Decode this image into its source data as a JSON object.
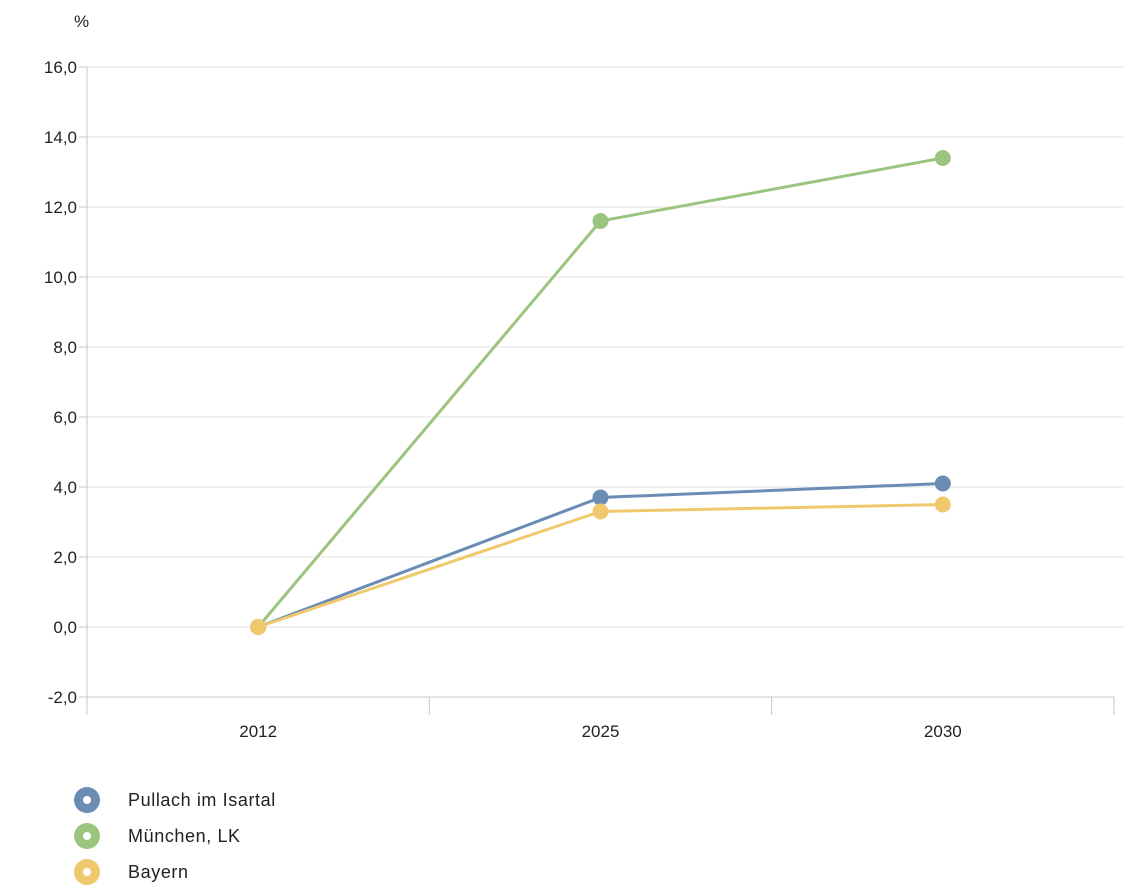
{
  "chart_data": {
    "type": "line",
    "unit_label": "%",
    "categories": [
      "2012",
      "2025",
      "2030"
    ],
    "ylim": [
      -2,
      16
    ],
    "y_ticks": [
      "-2,0",
      "0,0",
      "2,0",
      "4,0",
      "6,0",
      "8,0",
      "10,0",
      "12,0",
      "14,0",
      "16,0"
    ],
    "grid": true,
    "legend_position": "bottom-left",
    "series": [
      {
        "name": "Pullach im Isartal",
        "color": "#6b8cb5",
        "values": [
          0.0,
          3.7,
          4.1
        ]
      },
      {
        "name": "München, LK",
        "color": "#9bc57f",
        "values": [
          0.0,
          11.6,
          13.4
        ]
      },
      {
        "name": "Bayern",
        "color": "#f0c96e",
        "values": [
          0.0,
          3.3,
          3.5
        ]
      }
    ]
  }
}
